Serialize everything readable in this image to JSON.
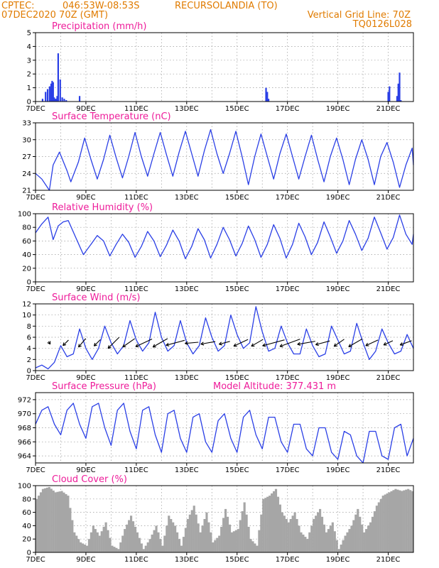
{
  "header": {
    "agency": "CPTEC:",
    "coords": "046:53W-08:53S",
    "location": "RECURSOLANDIA (TO)",
    "datetime": "07DEC2020 70Z (GMT)",
    "grid_note": "Vertical Grid Line: 70Z",
    "code": "TQ0126L028"
  },
  "colors": {
    "header": "#e07b00",
    "panel_title": "#ee1c9a",
    "series": "#2a3fe6",
    "cloud": "#a6a6a6",
    "wind_arrow": "#000000"
  },
  "chart_data": [
    {
      "id": "precip",
      "type": "bar",
      "title": "Precipitation (mm/h)",
      "ylim": [
        0,
        5
      ],
      "yticks": [
        0,
        1,
        2,
        3,
        4,
        5
      ],
      "x_ticks": [
        "7DEC",
        "9DEC",
        "11DEC",
        "13DEC",
        "15DEC",
        "17DEC",
        "19DEC",
        "21DEC"
      ],
      "x_range_days": [
        0,
        15
      ],
      "grid": true,
      "series": [
        {
          "x": [
            0.28,
            0.4,
            0.48,
            0.56,
            0.62,
            0.66,
            0.7,
            0.74,
            0.78,
            0.82,
            0.86,
            0.9,
            0.98,
            1.06,
            1.14,
            1.22,
            1.75,
            9.15,
            9.2,
            9.25,
            14.0,
            14.05,
            14.35,
            14.4,
            14.45,
            14.5
          ],
          "values": [
            0.2,
            0.7,
            0.9,
            1.1,
            1.3,
            1.5,
            1.4,
            0.3,
            0.2,
            0.2,
            0.4,
            3.5,
            1.6,
            0.3,
            0.2,
            0.1,
            0.4,
            1.0,
            0.7,
            0.2,
            0.7,
            1.1,
            0.4,
            1.3,
            2.1,
            0.1
          ]
        }
      ]
    },
    {
      "id": "temperature",
      "type": "line",
      "title": "Surface Temperature (nC)",
      "ylim": [
        21,
        33
      ],
      "yticks": [
        21,
        24,
        27,
        30,
        33
      ],
      "x_ticks": [
        "7DEC",
        "9DEC",
        "11DEC",
        "13DEC",
        "15DEC",
        "17DEC",
        "19DEC",
        "21DEC"
      ],
      "x_range_days": [
        0,
        15
      ],
      "grid": true,
      "series": [
        {
          "x": [
            0.0,
            0.25,
            0.55,
            0.7,
            0.95,
            1.25,
            1.4,
            1.7,
            1.95,
            2.2,
            2.45,
            2.7,
            2.95,
            3.2,
            3.45,
            3.7,
            3.95,
            4.2,
            4.45,
            4.7,
            4.95,
            5.2,
            5.45,
            5.7,
            5.95,
            6.2,
            6.45,
            6.7,
            6.95,
            7.2,
            7.45,
            7.7,
            7.95,
            8.2,
            8.45,
            8.7,
            8.95,
            9.2,
            9.45,
            9.7,
            9.95,
            10.2,
            10.45,
            10.7,
            10.95,
            11.2,
            11.45,
            11.7,
            11.95,
            12.2,
            12.45,
            12.7,
            12.95,
            13.2,
            13.45,
            13.7,
            13.95,
            14.2,
            14.45,
            14.7,
            14.95,
            15.0
          ],
          "values": [
            24.0,
            23.0,
            21.0,
            25.5,
            27.8,
            24.5,
            22.5,
            26.0,
            30.3,
            26.5,
            23.0,
            26.5,
            30.8,
            26.8,
            23.2,
            27.0,
            31.3,
            27.0,
            23.5,
            27.5,
            31.3,
            27.3,
            23.5,
            27.8,
            31.5,
            27.5,
            23.5,
            28.0,
            31.8,
            27.5,
            24.0,
            27.5,
            31.5,
            27.0,
            22.0,
            27.0,
            31.0,
            27.0,
            23.0,
            27.5,
            31.0,
            27.0,
            23.0,
            27.0,
            30.8,
            26.5,
            22.5,
            27.0,
            30.3,
            26.5,
            22.0,
            26.5,
            30.0,
            26.5,
            22.0,
            27.0,
            29.5,
            26.0,
            21.5,
            25.5,
            28.5,
            25.5
          ]
        }
      ]
    },
    {
      "id": "humidity",
      "type": "line",
      "title": "Relative Humidity (%)",
      "ylim": [
        0,
        100
      ],
      "yticks": [
        0,
        20,
        40,
        60,
        80,
        100
      ],
      "x_ticks": [
        "7DEC",
        "9DEC",
        "11DEC",
        "13DEC",
        "15DEC",
        "17DEC",
        "19DEC",
        "21DEC"
      ],
      "x_range_days": [
        0,
        15
      ],
      "grid": true,
      "series": [
        {
          "x": [
            0.0,
            0.25,
            0.5,
            0.7,
            0.9,
            1.1,
            1.3,
            1.6,
            1.9,
            2.2,
            2.45,
            2.7,
            2.95,
            3.2,
            3.45,
            3.7,
            3.95,
            4.2,
            4.45,
            4.7,
            4.95,
            5.2,
            5.45,
            5.7,
            5.95,
            6.2,
            6.45,
            6.7,
            6.95,
            7.2,
            7.45,
            7.7,
            7.95,
            8.2,
            8.45,
            8.7,
            8.95,
            9.2,
            9.45,
            9.7,
            9.95,
            10.2,
            10.45,
            10.7,
            10.95,
            11.2,
            11.45,
            11.7,
            11.95,
            12.2,
            12.45,
            12.7,
            12.95,
            13.2,
            13.45,
            13.7,
            13.95,
            14.2,
            14.45,
            14.7,
            14.95,
            15.0
          ],
          "values": [
            72,
            85,
            95,
            62,
            82,
            88,
            90,
            65,
            40,
            55,
            68,
            60,
            38,
            55,
            70,
            58,
            36,
            52,
            74,
            60,
            37,
            54,
            76,
            60,
            34,
            52,
            78,
            62,
            35,
            55,
            80,
            62,
            38,
            56,
            82,
            62,
            36,
            55,
            84,
            64,
            35,
            55,
            86,
            66,
            40,
            58,
            88,
            66,
            42,
            60,
            90,
            70,
            46,
            64,
            95,
            72,
            48,
            65,
            98,
            70,
            55,
            70
          ]
        }
      ]
    },
    {
      "id": "wind",
      "type": "line",
      "title": "Surface Wind (m/s)",
      "ylim": [
        0,
        12
      ],
      "yticks": [
        0,
        2,
        4,
        6,
        8,
        10,
        12
      ],
      "x_ticks": [
        "7DEC",
        "9DEC",
        "11DEC",
        "13DEC",
        "15DEC",
        "17DEC",
        "19DEC",
        "21DEC"
      ],
      "x_range_days": [
        0,
        15
      ],
      "grid": true,
      "series": [
        {
          "x": [
            0.0,
            0.25,
            0.5,
            0.75,
            1.0,
            1.25,
            1.5,
            1.75,
            2.0,
            2.25,
            2.5,
            2.75,
            3.0,
            3.25,
            3.5,
            3.75,
            4.0,
            4.25,
            4.5,
            4.75,
            5.0,
            5.25,
            5.5,
            5.75,
            6.0,
            6.25,
            6.5,
            6.75,
            7.0,
            7.25,
            7.5,
            7.75,
            8.0,
            8.25,
            8.5,
            8.75,
            9.0,
            9.25,
            9.5,
            9.75,
            10.0,
            10.25,
            10.5,
            10.75,
            11.0,
            11.25,
            11.5,
            11.75,
            12.0,
            12.25,
            12.5,
            12.75,
            13.0,
            13.25,
            13.5,
            13.75,
            14.0,
            14.25,
            14.5,
            14.75,
            15.0
          ],
          "values": [
            0.5,
            1.0,
            0.3,
            1.5,
            4.5,
            2.5,
            3.0,
            7.5,
            4.0,
            2.0,
            4.0,
            8.0,
            5.0,
            3.0,
            4.5,
            9.0,
            5.5,
            3.5,
            5.0,
            10.5,
            6.0,
            3.5,
            4.5,
            9.0,
            5.0,
            3.0,
            4.5,
            9.5,
            6.0,
            3.5,
            4.5,
            10.0,
            6.5,
            4.0,
            5.0,
            11.5,
            7.0,
            3.5,
            4.0,
            8.0,
            5.0,
            3.0,
            3.0,
            7.5,
            4.5,
            2.5,
            3.0,
            8.0,
            5.5,
            3.0,
            3.5,
            8.5,
            5.0,
            2.0,
            3.5,
            7.5,
            5.0,
            3.0,
            3.5,
            6.5,
            4.0
          ]
        }
      ],
      "wind_vectors": {
        "x": [
          0.55,
          1.2,
          1.85,
          2.45,
          3.1,
          3.7,
          4.3,
          4.95,
          5.55,
          6.2,
          6.85,
          7.5,
          8.15,
          8.8,
          9.45,
          10.1,
          10.75,
          11.4,
          12.05,
          12.7,
          13.35,
          14.0,
          14.7
        ],
        "speed": [
          0.5,
          2.5,
          4.0,
          3.0,
          6.0,
          5.5,
          7.0,
          6.5,
          7.5,
          5.0,
          5.5,
          4.0,
          6.0,
          5.0,
          9.0,
          8.5,
          7.0,
          5.5,
          4.5,
          6.0,
          5.0,
          3.5,
          4.5
        ],
        "dir_deg": [
          300,
          225,
          230,
          225,
          225,
          215,
          205,
          210,
          195,
          185,
          190,
          195,
          205,
          210,
          195,
          200,
          190,
          195,
          215,
          210,
          205,
          205,
          200
        ]
      }
    },
    {
      "id": "pressure",
      "type": "line",
      "title": "Surface Pressure (hPa)",
      "annotation": "Model Altitude: 377.431 m",
      "ylim": [
        963,
        973
      ],
      "yticks": [
        964,
        966,
        968,
        970,
        972
      ],
      "x_ticks": [
        "7DEC",
        "9DEC",
        "11DEC",
        "13DEC",
        "15DEC",
        "17DEC",
        "19DEC",
        "21DEC"
      ],
      "x_range_days": [
        0,
        15
      ],
      "grid": true,
      "series": [
        {
          "x": [
            0.0,
            0.25,
            0.5,
            0.75,
            1.0,
            1.25,
            1.5,
            1.75,
            2.0,
            2.25,
            2.5,
            2.75,
            3.0,
            3.25,
            3.5,
            3.75,
            4.0,
            4.25,
            4.5,
            4.75,
            5.0,
            5.25,
            5.5,
            5.75,
            6.0,
            6.25,
            6.5,
            6.75,
            7.0,
            7.25,
            7.5,
            7.75,
            8.0,
            8.25,
            8.5,
            8.75,
            9.0,
            9.25,
            9.5,
            9.75,
            10.0,
            10.25,
            10.5,
            10.75,
            11.0,
            11.25,
            11.5,
            11.75,
            12.0,
            12.25,
            12.5,
            12.75,
            13.0,
            13.25,
            13.5,
            13.75,
            14.0,
            14.25,
            14.5,
            14.75,
            15.0
          ],
          "values": [
            968.5,
            970.5,
            971.0,
            968.5,
            967.0,
            970.5,
            971.5,
            968.5,
            966.5,
            971.0,
            971.5,
            968.0,
            965.5,
            970.5,
            971.5,
            967.5,
            965.0,
            970.5,
            971.0,
            967.0,
            964.5,
            970.0,
            970.5,
            966.5,
            964.5,
            969.5,
            970.0,
            966.0,
            964.5,
            969.0,
            970.0,
            966.5,
            964.5,
            969.5,
            970.5,
            967.0,
            965.0,
            969.5,
            969.5,
            966.0,
            964.5,
            968.5,
            968.5,
            965.0,
            964.0,
            968.0,
            968.0,
            964.5,
            963.5,
            967.5,
            967.0,
            964.0,
            963.0,
            967.5,
            967.5,
            964.0,
            963.5,
            968.0,
            968.5,
            964.0,
            966.5
          ]
        }
      ]
    },
    {
      "id": "cloud",
      "type": "area",
      "title": "Cloud Cover (%)",
      "ylim": [
        0,
        100
      ],
      "yticks": [
        0,
        20,
        40,
        60,
        80,
        100
      ],
      "x_ticks": [
        "7DEC",
        "9DEC",
        "11DEC",
        "13DEC",
        "15DEC",
        "17DEC",
        "19DEC",
        "21DEC"
      ],
      "x_range_days": [
        0,
        15
      ],
      "grid": true,
      "series": [
        {
          "x": [
            0.0,
            0.25,
            0.5,
            0.75,
            1.0,
            1.25,
            1.5,
            1.75,
            2.0,
            2.25,
            2.5,
            2.75,
            3.0,
            3.25,
            3.5,
            3.75,
            4.0,
            4.25,
            4.5,
            4.75,
            5.0,
            5.25,
            5.5,
            5.75,
            6.0,
            6.25,
            6.5,
            6.75,
            7.0,
            7.25,
            7.5,
            7.75,
            8.0,
            8.25,
            8.5,
            8.75,
            9.0,
            9.25,
            9.5,
            9.75,
            10.0,
            10.25,
            10.5,
            10.75,
            11.0,
            11.25,
            11.5,
            11.75,
            12.0,
            12.25,
            12.5,
            12.75,
            13.0,
            13.25,
            13.5,
            13.75,
            14.0,
            14.25,
            14.5,
            14.75,
            15.0
          ],
          "values": [
            80,
            95,
            98,
            90,
            92,
            85,
            30,
            15,
            10,
            40,
            25,
            45,
            10,
            5,
            35,
            55,
            30,
            5,
            20,
            40,
            10,
            55,
            40,
            10,
            50,
            70,
            30,
            60,
            15,
            25,
            65,
            30,
            35,
            75,
            20,
            10,
            80,
            85,
            95,
            60,
            45,
            60,
            30,
            20,
            50,
            65,
            30,
            45,
            5,
            25,
            40,
            65,
            30,
            45,
            70,
            85,
            90,
            95,
            92,
            95,
            90
          ]
        }
      ]
    }
  ]
}
